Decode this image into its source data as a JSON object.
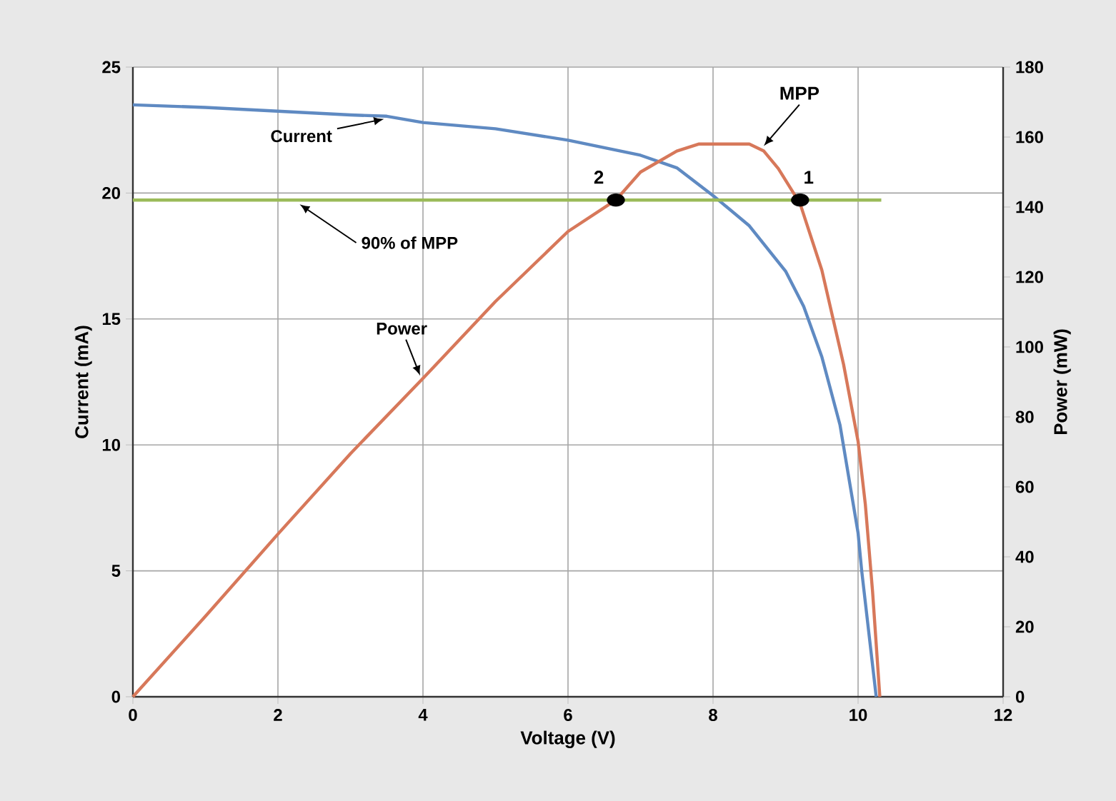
{
  "chart_data": {
    "type": "line",
    "xlabel": "Voltage (V)",
    "ylabel": "Current (mA)",
    "y2label": "Power (mW)",
    "xlim": [
      0,
      12
    ],
    "xticks": [
      0,
      2,
      4,
      6,
      8,
      10,
      12
    ],
    "ylim": [
      0,
      25
    ],
    "yticks": [
      0,
      5,
      10,
      15,
      20,
      25
    ],
    "y2lim": [
      0,
      180
    ],
    "y2ticks": [
      0,
      20,
      40,
      60,
      80,
      100,
      120,
      140,
      160,
      180
    ],
    "grid": true,
    "series": [
      {
        "name": "Current",
        "color": "#5f8ac2",
        "x": [
          0,
          1,
          2,
          3,
          3.5,
          4,
          5,
          6,
          7,
          7.5,
          8,
          8.5,
          9,
          9.25,
          9.5,
          9.75,
          10,
          10.05,
          10.25
        ],
        "values": [
          23.5,
          23.4,
          23.25,
          23.1,
          23.05,
          22.8,
          22.55,
          22.1,
          21.5,
          21.0,
          19.9,
          18.7,
          16.9,
          15.5,
          13.5,
          10.8,
          6.5,
          5.0,
          0
        ]
      },
      {
        "name": "Power",
        "color": "#d7785a",
        "axis": "y2",
        "x": [
          0,
          1,
          2,
          3,
          4,
          5,
          6,
          6.66,
          7,
          7.5,
          7.8,
          8,
          8.5,
          8.7,
          8.9,
          9.2,
          9.5,
          9.8,
          10,
          10.1,
          10.2,
          10.3
        ],
        "values": [
          0,
          23,
          46.5,
          69.5,
          91,
          113,
          133,
          142,
          150,
          156,
          158,
          158,
          158,
          156,
          151,
          141,
          122,
          95,
          73,
          55,
          30,
          0
        ]
      },
      {
        "type": "scatter",
        "color": "#000000",
        "axis": "y2",
        "x": [
          6.66,
          9.2
        ],
        "values": [
          142,
          142
        ]
      }
    ],
    "ref_lines": [
      {
        "axis": "y2",
        "value": 142,
        "label": "90% of MPP",
        "color": "#9bbb59"
      }
    ],
    "annotations": [
      {
        "text": "MPP",
        "x": 8.7,
        "y": 21.7
      },
      "2",
      "1"
    ]
  }
}
